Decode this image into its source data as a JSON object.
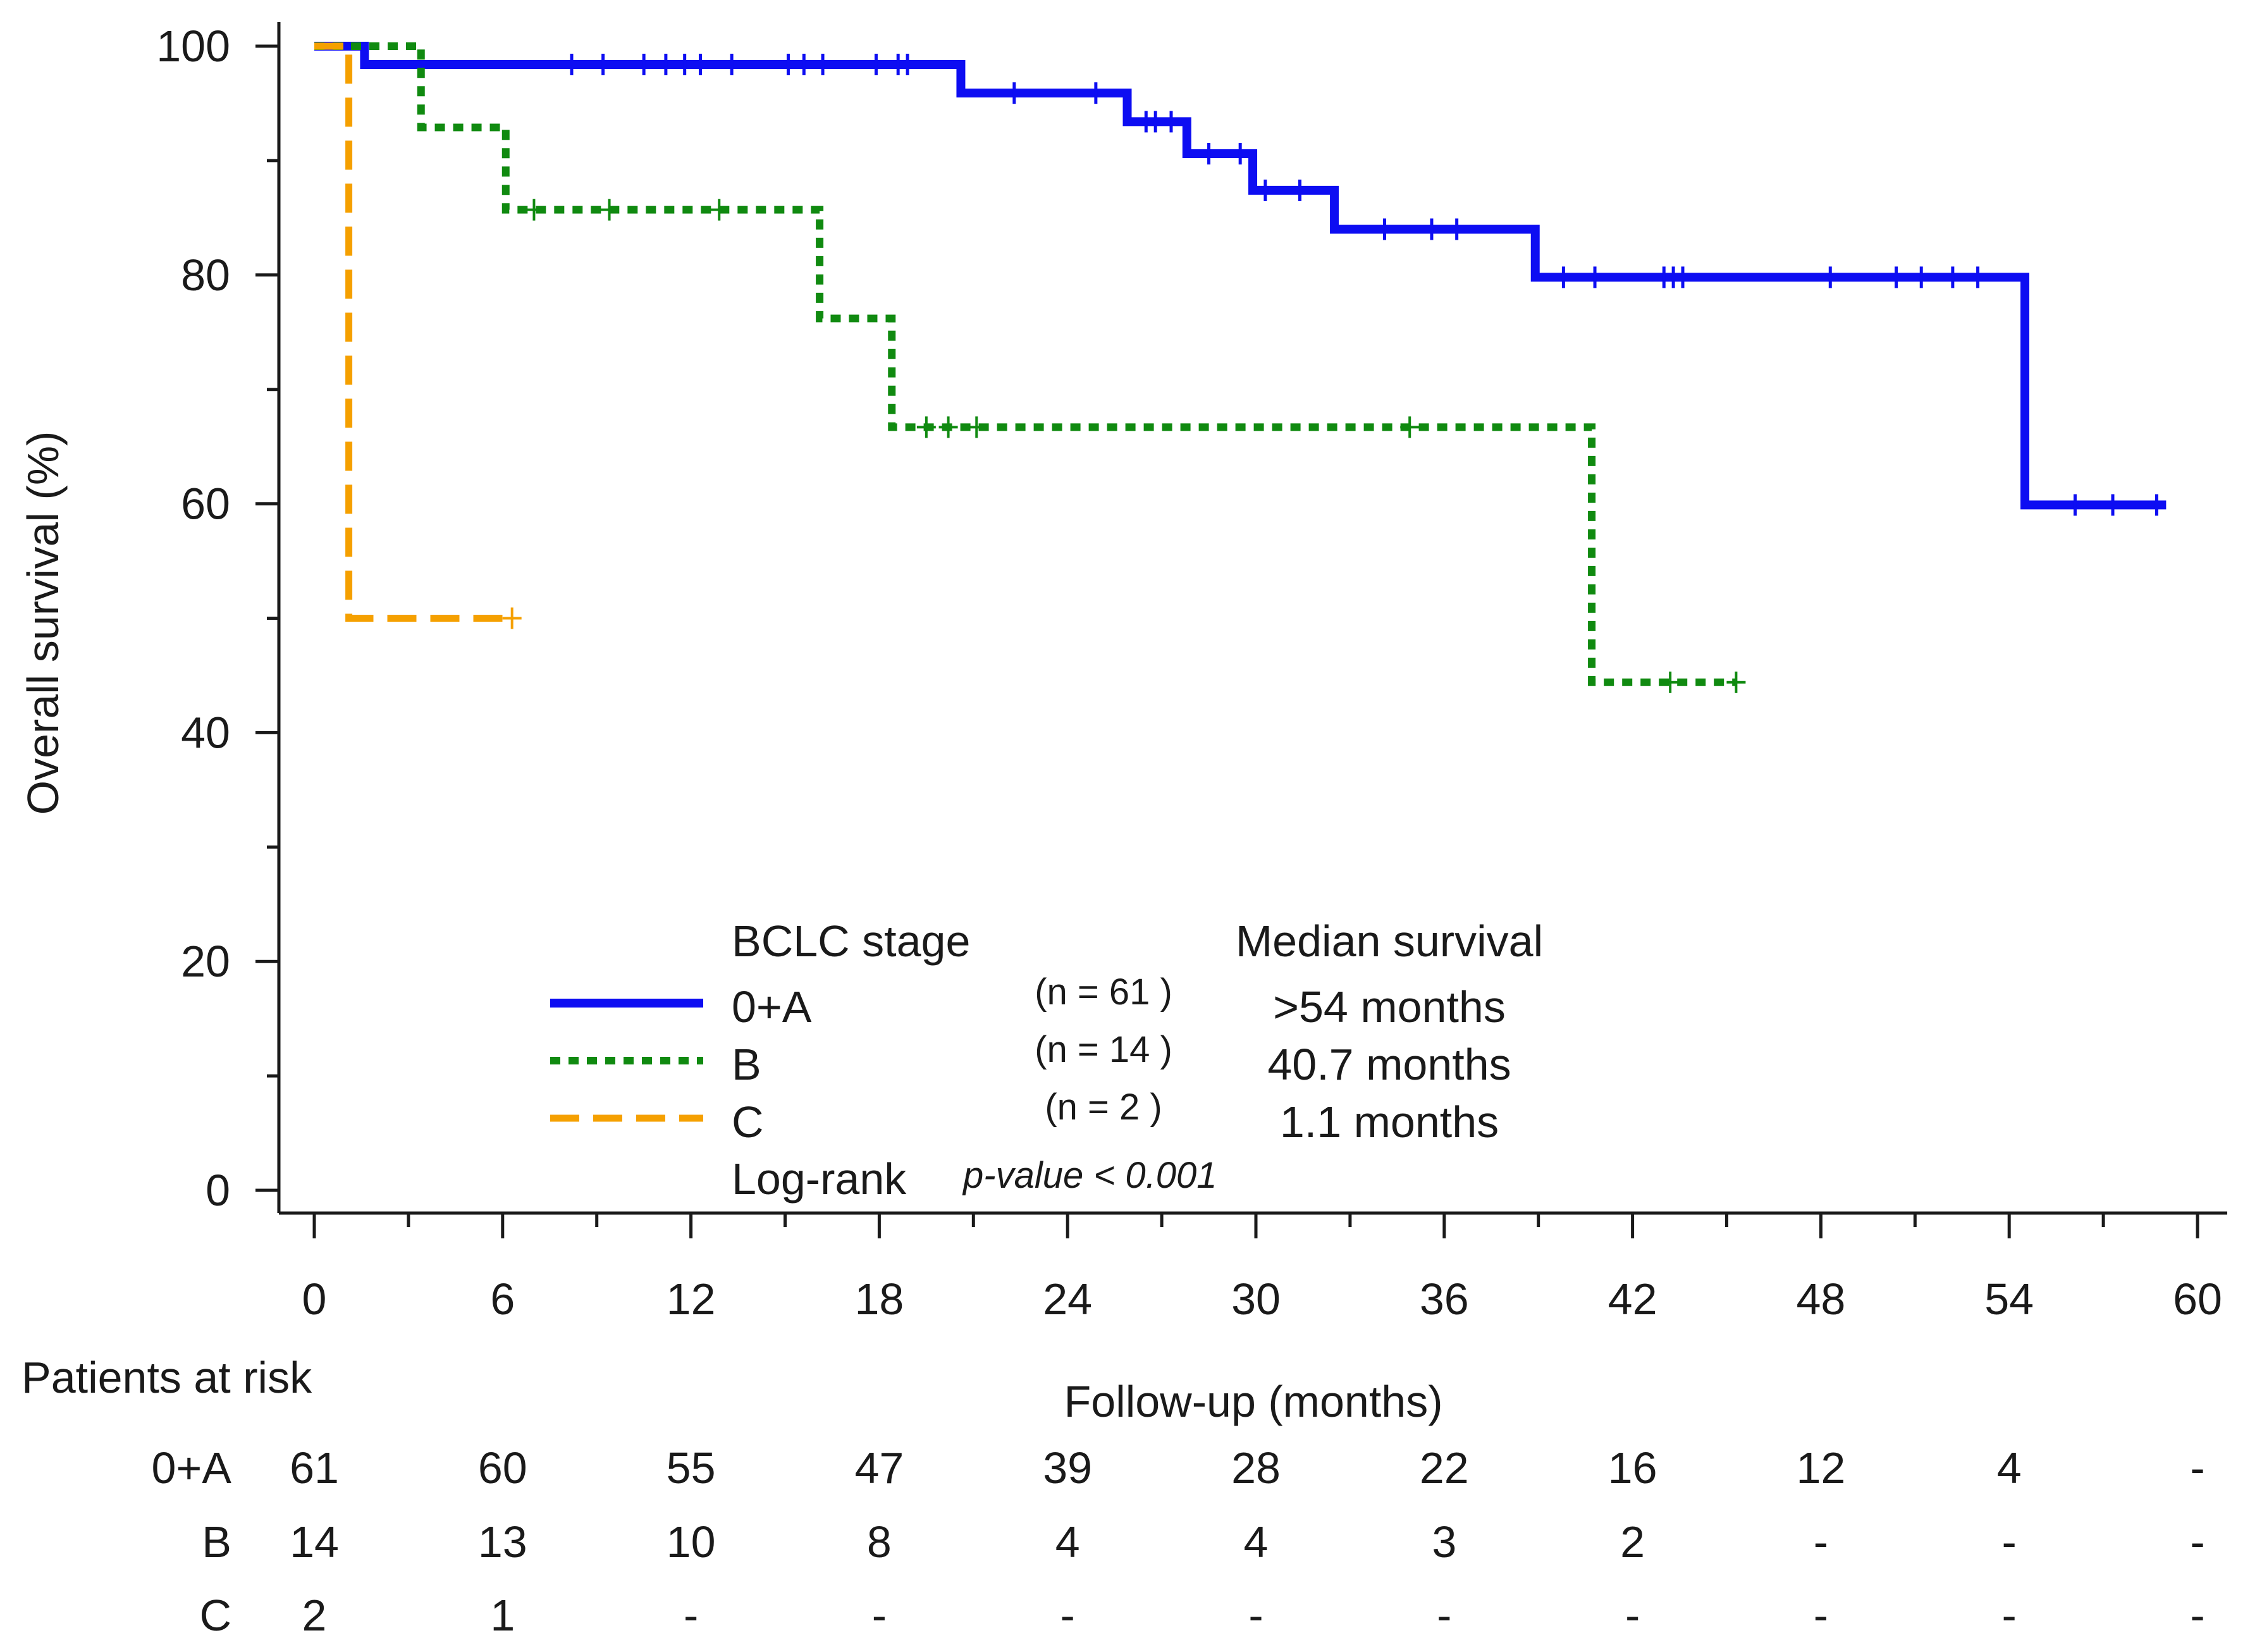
{
  "chart_data": {
    "type": "line",
    "subtype": "kaplan-meier",
    "title": "",
    "xlabel": "Follow-up (months)",
    "ylabel": "Overall survival (%)",
    "xlim": [
      0,
      60
    ],
    "ylim": [
      0,
      100
    ],
    "x_ticks": [
      0,
      6,
      12,
      18,
      24,
      30,
      36,
      42,
      48,
      54,
      60
    ],
    "y_ticks": [
      0,
      20,
      40,
      60,
      80,
      100
    ],
    "grid": false,
    "legend": {
      "placement": "bottom-center",
      "title": "BCLC stage",
      "median_header": "Median survival",
      "logrank_label": "Log-rank",
      "pvalue_label": "p-value < 0.001"
    },
    "series": [
      {
        "name": "0+A",
        "n_label": "(n = 61 )",
        "median": ">54 months",
        "color": "#0d0df2",
        "style": "solid",
        "steps": [
          [
            0,
            100
          ],
          [
            1.6,
            98.4
          ],
          [
            20.6,
            95.9
          ],
          [
            25.9,
            93.4
          ],
          [
            27.8,
            90.6
          ],
          [
            29.9,
            87.4
          ],
          [
            32.5,
            84.0
          ],
          [
            38.9,
            79.8
          ],
          [
            54.5,
            59.9
          ],
          [
            59,
            59.9
          ]
        ],
        "censored": [
          [
            8.2,
            98.4
          ],
          [
            9.2,
            98.4
          ],
          [
            10.5,
            98.4
          ],
          [
            11.2,
            98.4
          ],
          [
            11.8,
            98.4
          ],
          [
            12.3,
            98.4
          ],
          [
            13.3,
            98.4
          ],
          [
            15.1,
            98.4
          ],
          [
            15.6,
            98.4
          ],
          [
            16.2,
            98.4
          ],
          [
            17.9,
            98.4
          ],
          [
            18.6,
            98.4
          ],
          [
            18.9,
            98.4
          ],
          [
            22.3,
            95.9
          ],
          [
            24.9,
            95.9
          ],
          [
            26.5,
            93.4
          ],
          [
            26.8,
            93.4
          ],
          [
            27.3,
            93.4
          ],
          [
            28.5,
            90.6
          ],
          [
            29.5,
            90.6
          ],
          [
            30.3,
            87.4
          ],
          [
            31.4,
            87.4
          ],
          [
            34.1,
            84.0
          ],
          [
            35.6,
            84.0
          ],
          [
            36.4,
            84.0
          ],
          [
            39.8,
            79.8
          ],
          [
            40.8,
            79.8
          ],
          [
            43.0,
            79.8
          ],
          [
            43.3,
            79.8
          ],
          [
            43.6,
            79.8
          ],
          [
            48.3,
            79.8
          ],
          [
            50.4,
            79.8
          ],
          [
            51.2,
            79.8
          ],
          [
            52.2,
            79.8
          ],
          [
            53.0,
            79.8
          ],
          [
            56.1,
            59.9
          ],
          [
            57.3,
            59.9
          ],
          [
            58.7,
            59.9
          ]
        ]
      },
      {
        "name": "B",
        "n_label": "(n = 14 )",
        "median": "40.7 months",
        "color": "#108a10",
        "style": "dotted",
        "steps": [
          [
            0,
            100
          ],
          [
            3.4,
            92.9
          ],
          [
            6.1,
            85.7
          ],
          [
            16.1,
            76.2
          ],
          [
            18.4,
            66.7
          ],
          [
            40.7,
            44.4
          ],
          [
            45.3,
            44.4
          ]
        ],
        "censored": [
          [
            7.0,
            85.7
          ],
          [
            9.4,
            85.7
          ],
          [
            12.9,
            85.7
          ],
          [
            19.5,
            66.7
          ],
          [
            20.2,
            66.7
          ],
          [
            21.1,
            66.7
          ],
          [
            34.9,
            66.7
          ],
          [
            43.2,
            44.4
          ],
          [
            45.3,
            44.4
          ]
        ]
      },
      {
        "name": "C",
        "n_label": "(n = 2 )",
        "median": "1.1 months",
        "color": "#f5a000",
        "style": "dashed",
        "steps": [
          [
            0,
            100
          ],
          [
            1.1,
            50.0
          ],
          [
            6.3,
            50.0
          ]
        ],
        "censored": [
          [
            6.3,
            50.0
          ]
        ]
      }
    ],
    "risk_table": {
      "title": "Patients at risk",
      "rows": [
        {
          "label": "0+A",
          "values": [
            "61",
            "60",
            "55",
            "47",
            "39",
            "28",
            "22",
            "16",
            "12",
            "4",
            "-"
          ]
        },
        {
          "label": "B",
          "values": [
            "14",
            "13",
            "10",
            "8",
            "4",
            "4",
            "3",
            "2",
            "-",
            "-",
            "-"
          ]
        },
        {
          "label": "C",
          "values": [
            "2",
            "1",
            "-",
            "-",
            "-",
            "-",
            "-",
            "-",
            "-",
            "-",
            "-"
          ]
        }
      ]
    }
  }
}
